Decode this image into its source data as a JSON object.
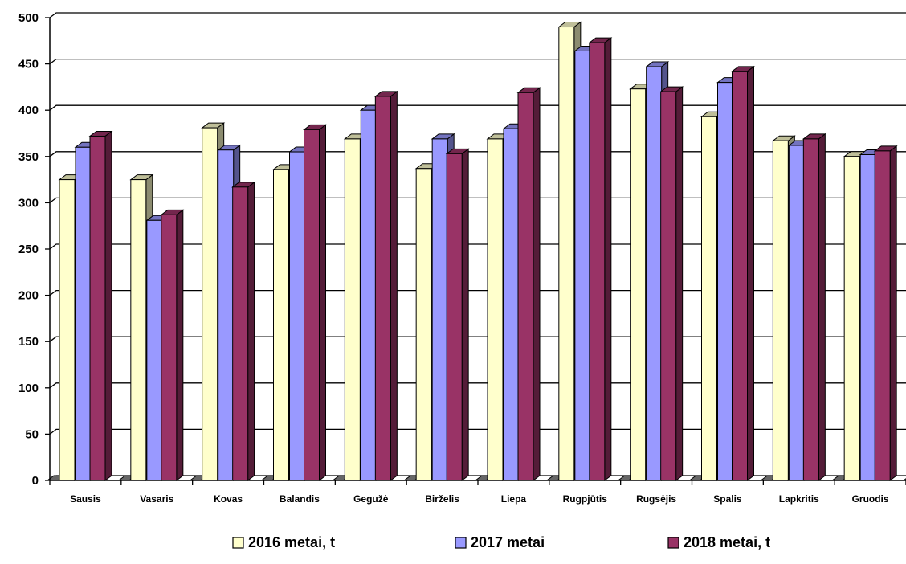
{
  "chart_data": {
    "type": "bar",
    "title": "",
    "xlabel": "",
    "ylabel": "",
    "ylim": [
      0,
      500
    ],
    "yticks": [
      "0",
      "50",
      "100",
      "150",
      "200",
      "250",
      "300",
      "350",
      "400",
      "450",
      "500"
    ],
    "grid": true,
    "legend_position": "bottom",
    "categories": [
      "Sausis",
      "Vasaris",
      "Kovas",
      "Balandis",
      "Gegužė",
      "Birželis",
      "Liepa",
      "Rugpjūtis",
      "Rugsėjis",
      "Spalis",
      "Lapkritis",
      "Gruodis"
    ],
    "series": [
      {
        "name": "2016 metai, t",
        "color": "#ffffcc",
        "values": [
          325,
          325,
          381,
          336,
          369,
          337,
          369,
          490,
          423,
          393,
          367,
          350
        ]
      },
      {
        "name": "2017 metai",
        "color": "#9999ff",
        "values": [
          360,
          281,
          357,
          355,
          400,
          369,
          380,
          464,
          447,
          430,
          362,
          352
        ]
      },
      {
        "name": "2018 metai, t",
        "color": "#993366",
        "values": [
          372,
          287,
          317,
          379,
          415,
          353,
          419,
          473,
          420,
          442,
          369,
          356
        ]
      }
    ]
  }
}
